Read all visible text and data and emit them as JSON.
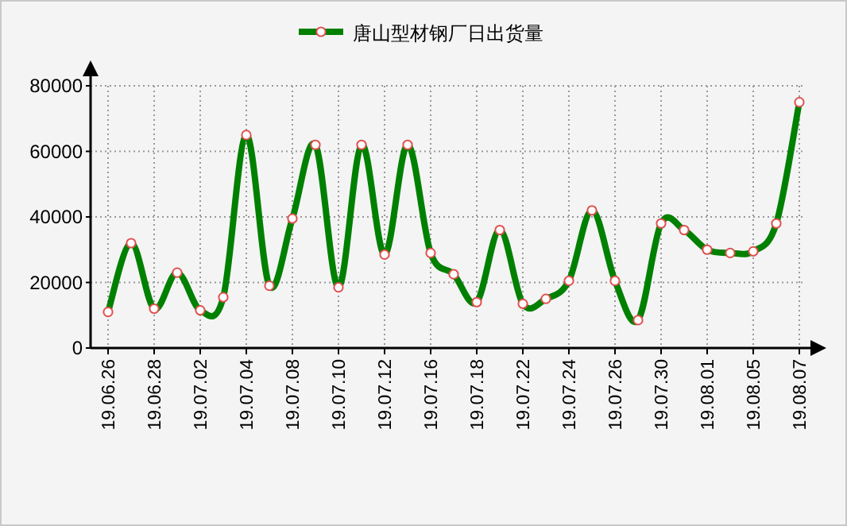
{
  "chart_data": {
    "type": "line",
    "categories": [
      "19.06.26",
      null,
      "19.06.28",
      null,
      "19.07.02",
      null,
      "19.07.04",
      null,
      "19.07.08",
      null,
      "19.07.10",
      null,
      "19.07.12",
      null,
      "19.07.16",
      null,
      "19.07.18",
      null,
      "19.07.22",
      null,
      "19.07.24",
      null,
      "19.07.26",
      null,
      "19.07.30",
      null,
      "19.08.01",
      null,
      "19.08.05",
      null,
      "19.08.07"
    ],
    "series": [
      {
        "name": "唐山型材钢厂日出货量",
        "color": "#008000",
        "values": [
          11000,
          32000,
          12000,
          23000,
          11500,
          15500,
          65000,
          19000,
          39500,
          62000,
          18500,
          62000,
          28500,
          62000,
          29000,
          22500,
          14000,
          36000,
          13500,
          15000,
          20500,
          42000,
          20500,
          8500,
          38000,
          36000,
          30000,
          29000,
          29500,
          38000,
          75000
        ]
      }
    ],
    "ylim": [
      0,
      80000
    ],
    "yticks": [
      0,
      20000,
      40000,
      60000,
      80000
    ],
    "grid": true,
    "legend": "top",
    "marker": "circle",
    "line_style": "solid"
  }
}
